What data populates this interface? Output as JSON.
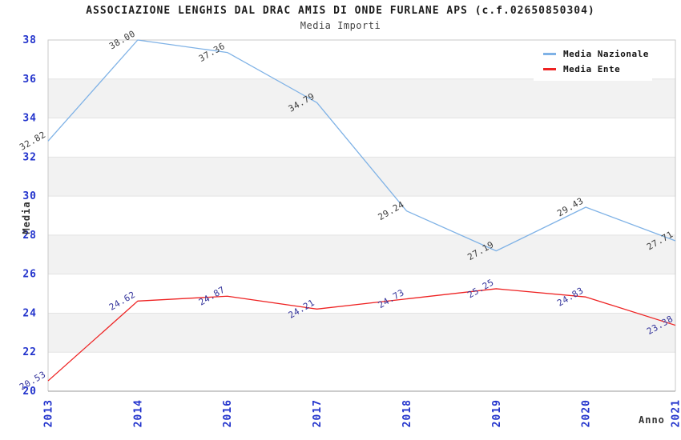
{
  "title": "ASSOCIAZIONE LENGHIS DAL DRAC AMIS DI ONDE FURLANE APS (c.f.02650850304)",
  "subtitle": "Media Importi",
  "chart_data": {
    "type": "line",
    "title": "ASSOCIAZIONE LENGHIS DAL DRAC AMIS DI ONDE FURLANE APS (c.f.02650850304)",
    "subtitle": "Media Importi",
    "xlabel": "Anno",
    "ylabel": "Media",
    "categories": [
      "2013",
      "2014",
      "2016",
      "2017",
      "2018",
      "2019",
      "2020",
      "2021"
    ],
    "series": [
      {
        "name": "Media Nazionale",
        "color": "#7FB2E6",
        "label_color": "#3C3C3C",
        "values": [
          32.82,
          38.0,
          37.36,
          34.79,
          29.24,
          27.19,
          29.43,
          27.71
        ]
      },
      {
        "name": "Media Ente",
        "color": "#EE2222",
        "label_color": "#33339B",
        "values": [
          20.53,
          24.62,
          24.87,
          24.21,
          24.73,
          25.25,
          24.83,
          23.38
        ]
      }
    ],
    "ylim": [
      20,
      38
    ],
    "ytick_step": 2,
    "grid": "alternating-horizontal-bands",
    "legend_position": "top-right",
    "colors": {
      "band_gray": "#F2F2F2",
      "gridline": "#E3E3E3",
      "plot_border": "#C8C8C8",
      "x_axis_line": "#999999",
      "tick_label_blue": "#2233CC"
    }
  }
}
